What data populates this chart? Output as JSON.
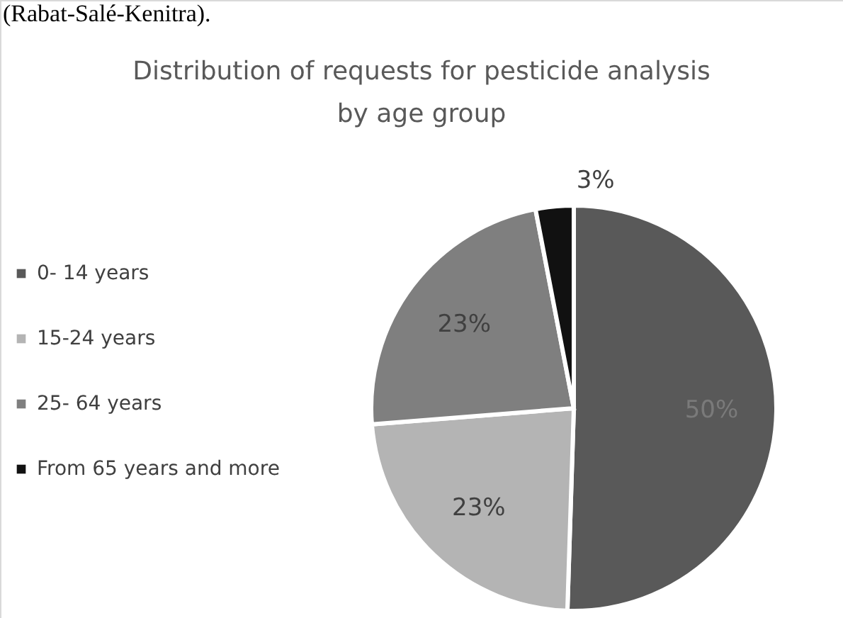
{
  "chart_data": {
    "type": "pie",
    "title": [
      "Distribution of requests for pesticide analysis",
      "by age group"
    ],
    "categories": [
      "0- 14 years",
      "15-24 years",
      "25- 64 years",
      "From 65 years and more"
    ],
    "values": [
      50,
      23,
      23,
      3
    ],
    "colors": [
      "#595959",
      "#b4b4b4",
      "#7f7f7f",
      "#111111"
    ],
    "value_labels": [
      "50%",
      "23%",
      "23%",
      "3%"
    ],
    "legend": "left",
    "annotations": [
      "(Rabat-Salé-Kenitra)."
    ]
  }
}
